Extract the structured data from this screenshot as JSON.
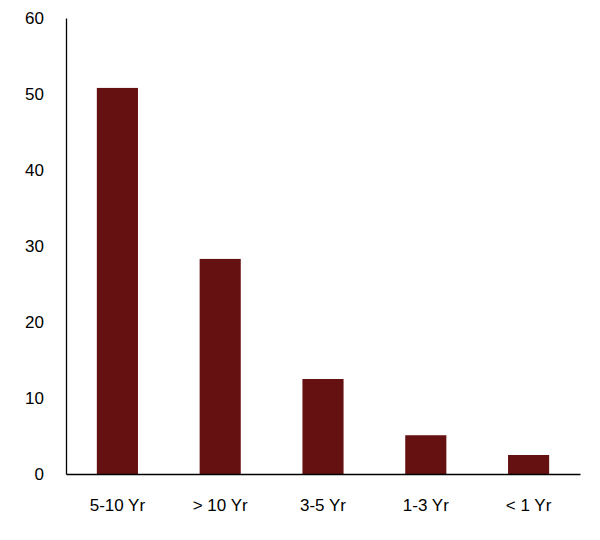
{
  "chart_data": {
    "type": "bar",
    "categories": [
      "5-10 Yr",
      "> 10 Yr",
      "3-5 Yr",
      "1-3 Yr",
      "< 1 Yr"
    ],
    "values": [
      50.8,
      28.3,
      12.5,
      5.1,
      2.5
    ],
    "color": "#651111",
    "ylim": [
      0,
      60
    ],
    "yticks": [
      0,
      10,
      20,
      30,
      40,
      50,
      60
    ],
    "grid": false
  }
}
